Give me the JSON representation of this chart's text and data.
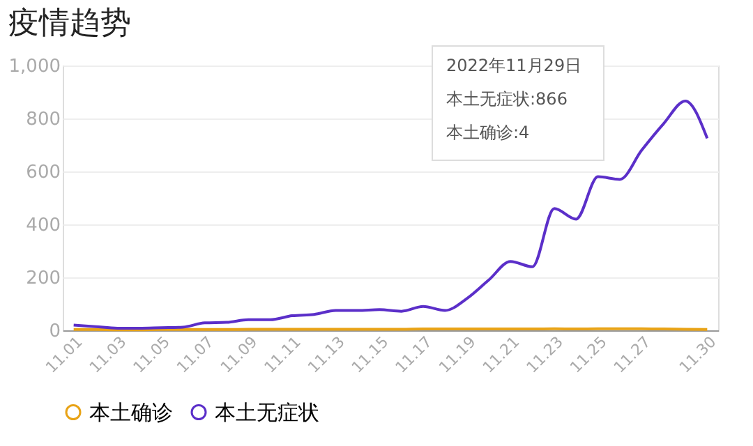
{
  "chart_data": {
    "type": "line",
    "title": "疫情趋势",
    "categories": [
      "11.01",
      null,
      "11.03",
      null,
      "11.05",
      null,
      "11.07",
      null,
      "11.09",
      null,
      "11.11",
      null,
      "11.13",
      null,
      "11.15",
      null,
      "11.17",
      null,
      "11.19",
      null,
      "11.21",
      null,
      "11.23",
      null,
      "11.25",
      null,
      "11.27",
      null,
      null,
      "11.30"
    ],
    "series": [
      {
        "name": "本土确诊",
        "color": "#e8a317",
        "values": [
          3,
          3,
          2,
          2,
          3,
          3,
          3,
          3,
          4,
          4,
          4,
          4,
          4,
          4,
          4,
          4,
          5,
          5,
          5,
          5,
          5,
          5,
          6,
          5,
          6,
          6,
          6,
          5,
          4,
          3
        ]
      },
      {
        "name": "本土无症状",
        "color": "#5b2fc9",
        "values": [
          20,
          14,
          8,
          8,
          10,
          12,
          28,
          30,
          40,
          40,
          55,
          60,
          75,
          75,
          78,
          72,
          90,
          75,
          120,
          190,
          260,
          240,
          460,
          420,
          580,
          570,
          680,
          780,
          866,
          725
        ]
      }
    ],
    "ylim": [
      0,
      1000
    ],
    "yticks": [
      0,
      200,
      400,
      600,
      800,
      {
        "value": 1000,
        "label": "1,000"
      }
    ],
    "grid": "y",
    "legend": "bottom",
    "line_style": "solid",
    "annotations": [
      "2022年11月29日",
      "本土无症状:866",
      "本土确诊:4"
    ]
  }
}
